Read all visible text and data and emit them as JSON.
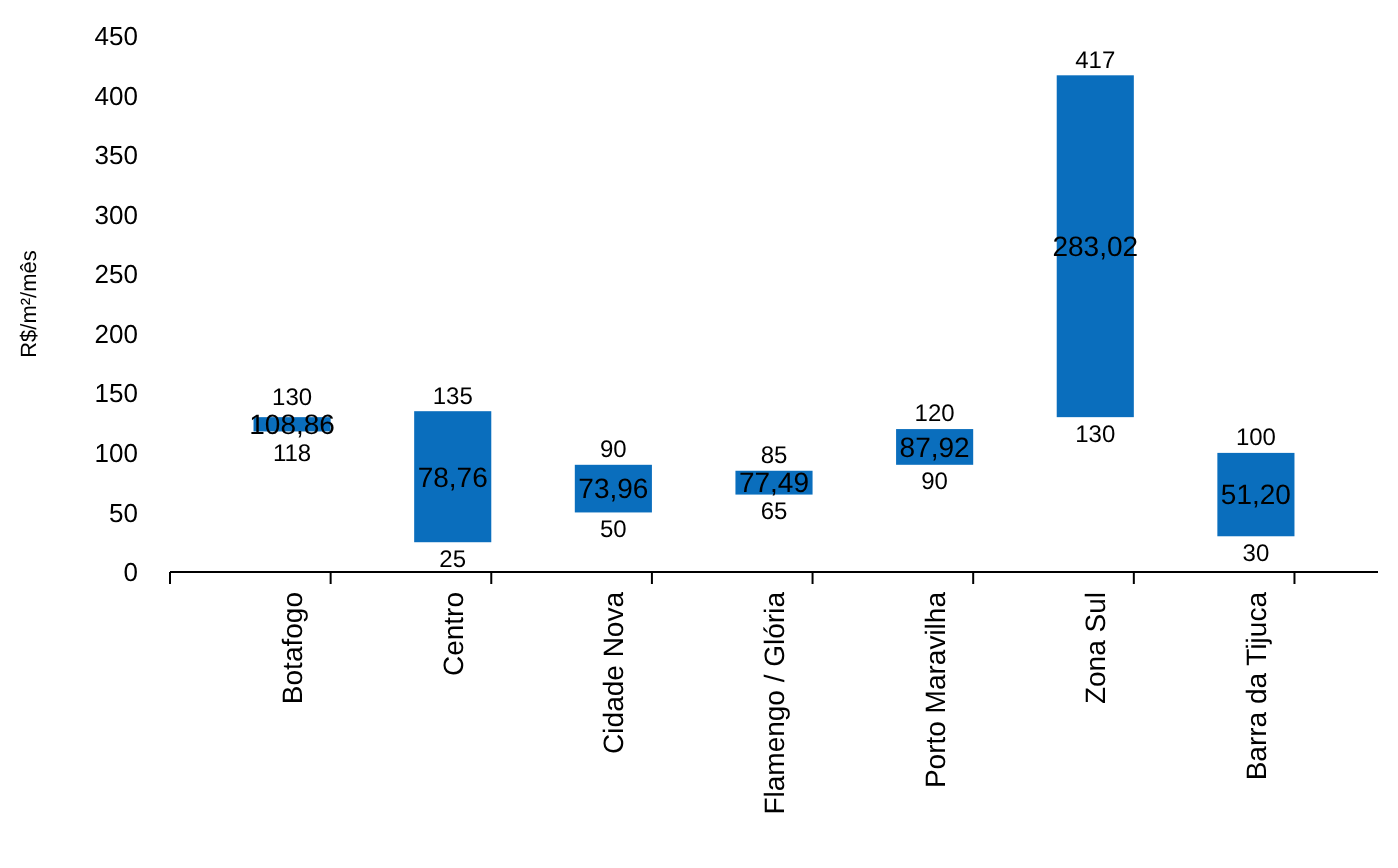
{
  "chart_data": {
    "type": "bar",
    "ylabel": "R$/m²/mês",
    "categories": [
      "Botafogo",
      "Centro",
      "Cidade Nova",
      "Flamengo / Glória",
      "Porto Maravilha",
      "Zona Sul",
      "Barra da Tijuca"
    ],
    "base": [
      118,
      25,
      50,
      65,
      90,
      130,
      30
    ],
    "values": [
      12,
      110,
      40,
      20,
      30,
      287,
      70
    ],
    "color": "#0a6ebd",
    "ylim": [
      0,
      450
    ],
    "yticks": [
      0,
      50,
      100,
      150,
      200,
      250,
      300,
      350,
      400,
      450
    ],
    "annotations": [
      "108,86",
      "78,76",
      "73,96",
      "77,49",
      "87,92",
      "283,02",
      "51,20",
      {
        "text": "130",
        "x": "Botafogo",
        "y": 130
      },
      {
        "text": "118",
        "x": "Botafogo",
        "y": 118
      },
      {
        "text": "135",
        "x": "Centro",
        "y": 135
      },
      {
        "text": "25",
        "x": "Centro",
        "y": 25
      },
      {
        "text": "90",
        "x": "Cidade Nova",
        "y": 90
      },
      {
        "text": "50",
        "x": "Cidade Nova",
        "y": 50
      },
      {
        "text": "85",
        "x": "Flamengo / Glória",
        "y": 85
      },
      {
        "text": "65",
        "x": "Flamengo / Glória",
        "y": 65
      },
      {
        "text": "120",
        "x": "Porto Maravilha",
        "y": 120
      },
      {
        "text": "90",
        "x": "Porto Maravilha",
        "y": 90
      },
      {
        "text": "417",
        "x": "Zona Sul",
        "y": 417
      },
      {
        "text": "130",
        "x": "Zona Sul",
        "y": 130
      },
      {
        "text": "100",
        "x": "Barra da Tijuca",
        "y": 100
      },
      {
        "text": "30",
        "x": "Barra da Tijuca",
        "y": 30
      }
    ]
  }
}
